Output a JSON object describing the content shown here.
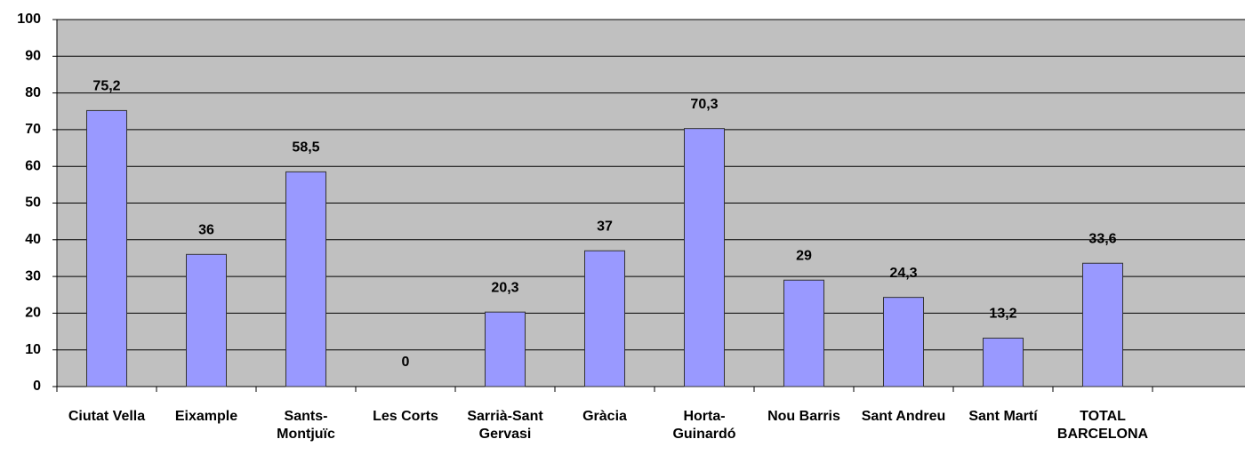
{
  "chart_data": {
    "type": "bar",
    "categories": [
      "Ciutat Vella",
      "Eixample",
      "Sants-\nMontjuïc",
      "Les Corts",
      "Sarrià-Sant\nGervasi",
      "Gràcia",
      "Horta-\nGuinardó",
      "Nou Barris",
      "Sant Andreu",
      "Sant Martí",
      "TOTAL\nBARCELONA",
      null
    ],
    "values": [
      75.2,
      36,
      58.5,
      0,
      20.3,
      37,
      70.3,
      29,
      24.3,
      13.2,
      33.6,
      null
    ],
    "value_labels": [
      "75,2",
      "36",
      "58,5",
      "0",
      "20,3",
      "37",
      "70,3",
      "29",
      "24,3",
      "13,2",
      "33,6",
      null
    ],
    "color": "#9999ff",
    "ylim": [
      0,
      100
    ],
    "yticks": [
      0,
      10,
      20,
      30,
      40,
      50,
      60,
      70,
      80,
      90,
      100
    ],
    "grid": true
  }
}
